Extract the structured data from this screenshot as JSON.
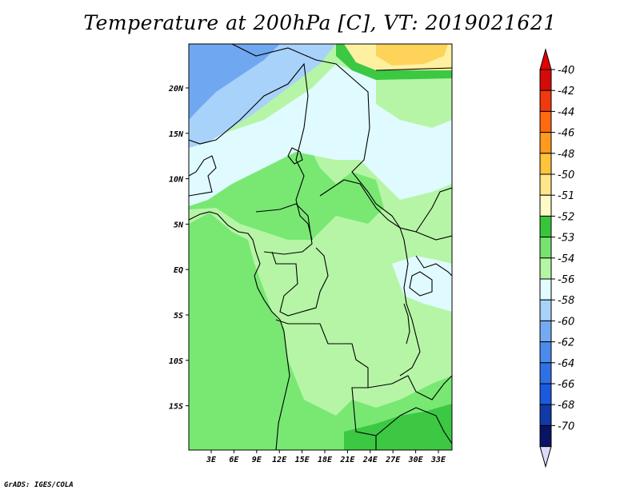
{
  "title": "Temperature at 200hPa [C], VT: 2019021621",
  "footer": "GrADS: IGES/COLA",
  "map": {
    "lat_labels": [
      "20N",
      "15N",
      "10N",
      "5N",
      "EQ",
      "5S",
      "10S",
      "15S"
    ],
    "lon_labels": [
      "3E",
      "6E",
      "9E",
      "12E",
      "15E",
      "18E",
      "21E",
      "24E",
      "27E",
      "30E",
      "33E"
    ],
    "fill_colors": {
      "c_minus58": "#6fa8f0",
      "c_minus56": "#a8d2fa",
      "c_minus54": "#e0fbff",
      "c_minus53": "#b6f5a6",
      "c_minus52": "#78e873",
      "c_minus51": "#3cc843",
      "c_minus50": "#fdf0a0",
      "c_minus48": "#fdd35a"
    }
  },
  "colorbar": {
    "labels": [
      "-40",
      "-42",
      "-44",
      "-46",
      "-48",
      "-50",
      "-51",
      "-52",
      "-53",
      "-54",
      "-56",
      "-58",
      "-60",
      "-62",
      "-64",
      "-66",
      "-68",
      "-70"
    ],
    "colors": [
      "#d70a0a",
      "#f0390c",
      "#ff6a10",
      "#ff9a1e",
      "#ffc33c",
      "#ffe68c",
      "#fdfac8",
      "#38c53b",
      "#77e36e",
      "#b6f5a4",
      "#e1fbff",
      "#a8d2fa",
      "#74aaf2",
      "#4b8bec",
      "#3070e6",
      "#1a5ade",
      "#0f3aa8",
      "#0a1465"
    ],
    "top_color": "#e60000",
    "bottom_color": "#dcdcf8"
  }
}
